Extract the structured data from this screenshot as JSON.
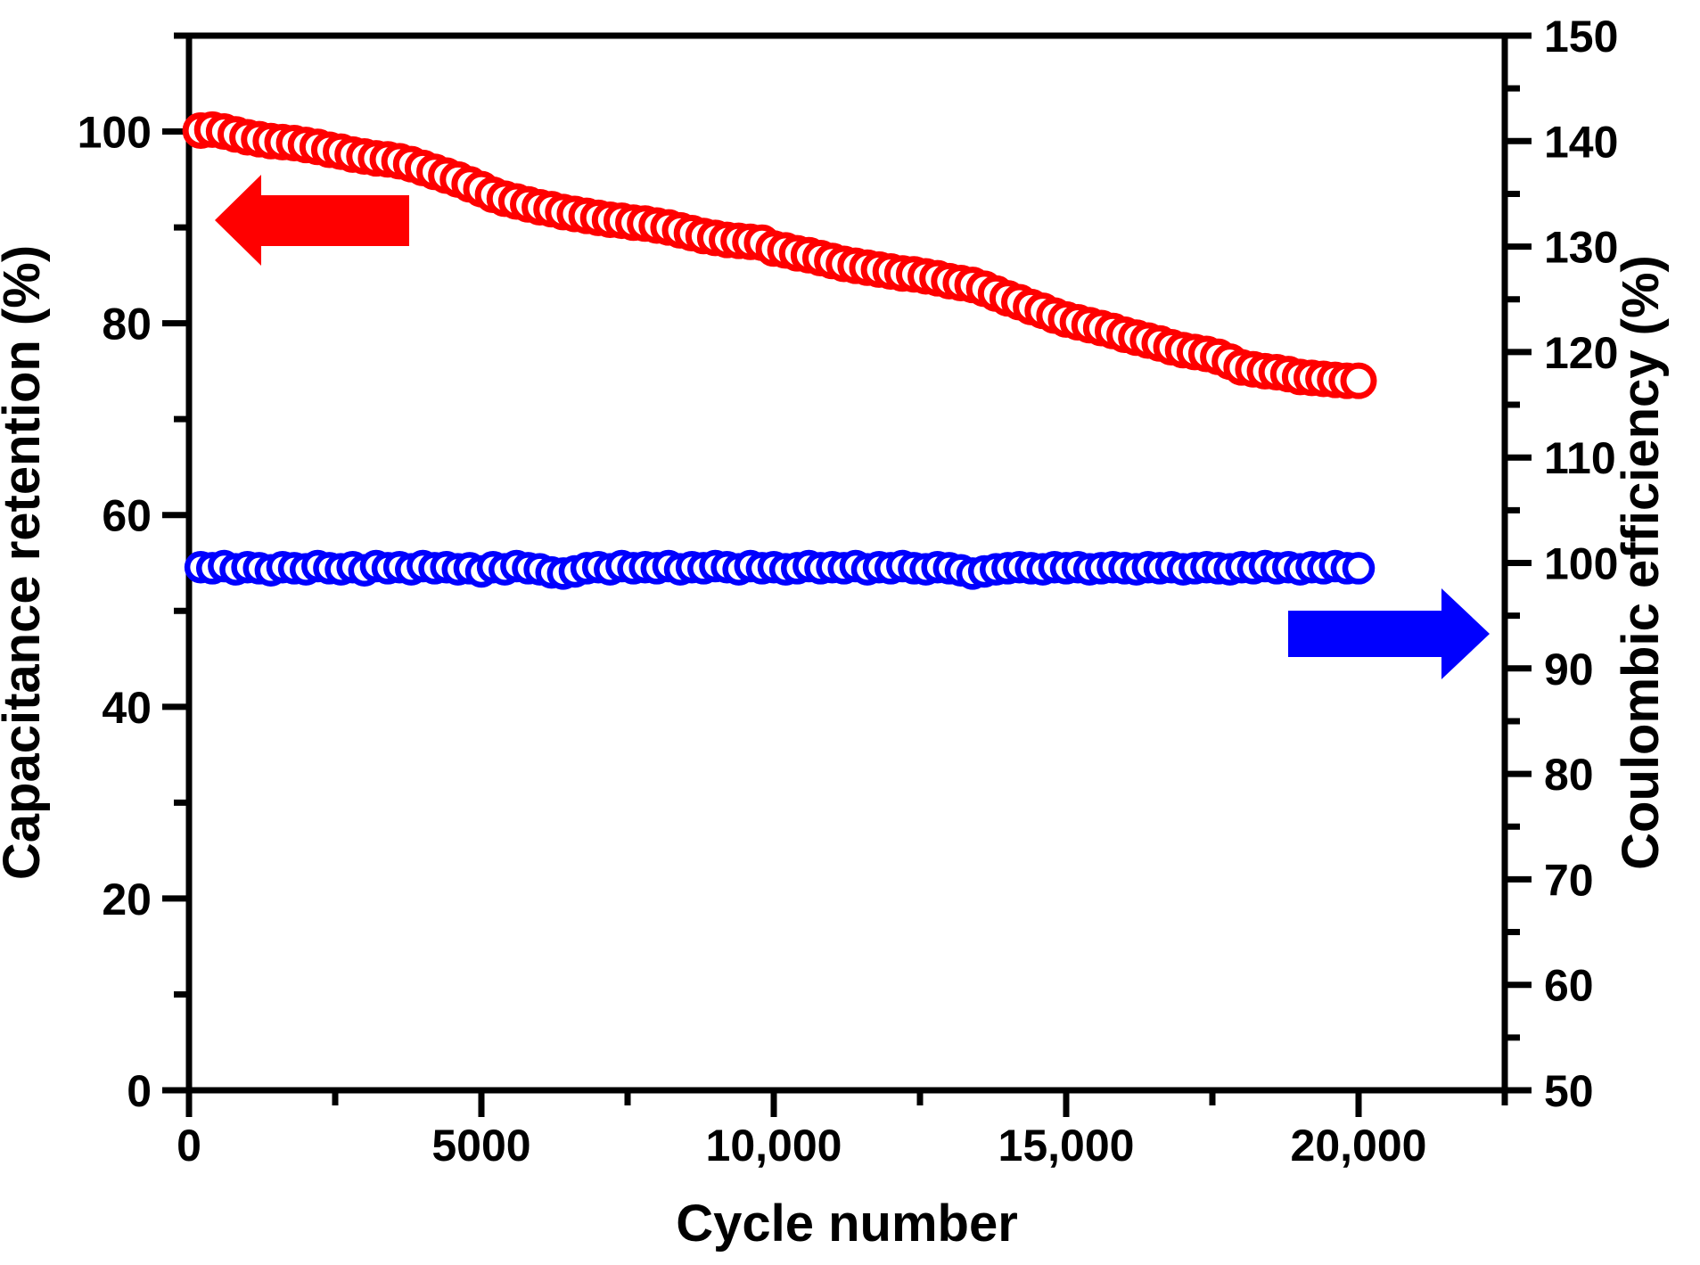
{
  "chart_data": {
    "type": "scatter",
    "title": "",
    "xlabel": "Cycle number",
    "ylabel_left": "Capacitance retention (%)",
    "ylabel_right": "Coulombic efficiency (%)",
    "colors": {
      "retention": "#ff0000",
      "efficiency": "#0000ff",
      "axis": "#000000",
      "background": "#ffffff"
    },
    "axes": {
      "x": {
        "range": [
          0,
          22500
        ],
        "major_ticks": [
          0,
          5000,
          10000,
          15000,
          20000
        ],
        "major_tick_labels": [
          "0",
          "5000",
          "10,000",
          "15,000",
          "20,000"
        ],
        "minor_ticks": [
          2500,
          7500,
          12500,
          17500,
          22500
        ]
      },
      "y_left": {
        "range": [
          0,
          110
        ],
        "major_ticks": [
          0,
          20,
          40,
          60,
          80,
          100
        ],
        "major_tick_labels": [
          "0",
          "20",
          "40",
          "60",
          "80",
          "100"
        ],
        "minor_ticks": [
          10,
          30,
          50,
          70,
          90,
          110
        ]
      },
      "y_right": {
        "range": [
          50,
          150
        ],
        "major_ticks": [
          50,
          60,
          70,
          80,
          90,
          100,
          110,
          120,
          130,
          140,
          150
        ],
        "major_tick_labels": [
          "50",
          "60",
          "70",
          "80",
          "90",
          "100",
          "110",
          "120",
          "130",
          "140",
          "150"
        ],
        "minor_ticks": [
          55,
          65,
          75,
          85,
          95,
          105,
          115,
          125,
          135,
          145
        ]
      }
    },
    "x": [
      200,
      400,
      600,
      800,
      1000,
      1200,
      1400,
      1600,
      1800,
      2000,
      2200,
      2400,
      2600,
      2800,
      3000,
      3200,
      3400,
      3600,
      3800,
      4000,
      4200,
      4400,
      4600,
      4800,
      5000,
      5200,
      5400,
      5600,
      5800,
      6000,
      6200,
      6400,
      6600,
      6800,
      7000,
      7200,
      7400,
      7600,
      7800,
      8000,
      8200,
      8400,
      8600,
      8800,
      9000,
      9200,
      9400,
      9600,
      9800,
      10000,
      10200,
      10400,
      10600,
      10800,
      11000,
      11200,
      11400,
      11600,
      11800,
      12000,
      12200,
      12400,
      12600,
      12800,
      13000,
      13200,
      13400,
      13600,
      13800,
      14000,
      14200,
      14400,
      14600,
      14800,
      15000,
      15200,
      15400,
      15600,
      15800,
      16000,
      16200,
      16400,
      16600,
      16800,
      17000,
      17200,
      17400,
      17600,
      17800,
      18000,
      18200,
      18400,
      18600,
      18800,
      19000,
      19200,
      19400,
      19600,
      19800,
      20000
    ],
    "series": [
      {
        "name": "Capacitance retention",
        "axis": "left",
        "marker": "open-circle",
        "color": "#ff0000",
        "values": [
          100.1,
          100.2,
          100.0,
          99.7,
          99.4,
          99.2,
          99.0,
          98.9,
          98.8,
          98.6,
          98.4,
          98.1,
          97.9,
          97.6,
          97.4,
          97.2,
          97.1,
          96.9,
          96.6,
          96.2,
          95.8,
          95.4,
          95.0,
          94.5,
          94.0,
          93.4,
          93.0,
          92.7,
          92.4,
          92.1,
          91.9,
          91.6,
          91.4,
          91.2,
          91.0,
          90.8,
          90.7,
          90.5,
          90.4,
          90.2,
          90.0,
          89.7,
          89.4,
          89.1,
          88.9,
          88.7,
          88.6,
          88.5,
          88.4,
          87.8,
          87.6,
          87.3,
          87.1,
          86.8,
          86.5,
          86.2,
          86.0,
          85.8,
          85.6,
          85.4,
          85.2,
          85.1,
          84.9,
          84.7,
          84.4,
          84.2,
          84.0,
          83.6,
          83.1,
          82.6,
          82.2,
          81.7,
          81.3,
          80.8,
          80.4,
          80.1,
          79.8,
          79.5,
          79.2,
          78.8,
          78.5,
          78.2,
          77.9,
          77.5,
          77.2,
          77.0,
          76.8,
          76.5,
          76.0,
          75.4,
          75.2,
          75.0,
          74.9,
          74.7,
          74.4,
          74.3,
          74.2,
          74.1,
          74.0,
          74.0
        ]
      },
      {
        "name": "Coulombic efficiency",
        "axis": "right",
        "marker": "open-circle",
        "color": "#0000ff",
        "values": [
          99.6,
          99.5,
          99.7,
          99.4,
          99.6,
          99.5,
          99.3,
          99.6,
          99.5,
          99.4,
          99.7,
          99.5,
          99.4,
          99.6,
          99.3,
          99.7,
          99.5,
          99.6,
          99.4,
          99.7,
          99.5,
          99.6,
          99.4,
          99.5,
          99.2,
          99.6,
          99.4,
          99.7,
          99.5,
          99.4,
          99.1,
          99.0,
          99.2,
          99.5,
          99.6,
          99.4,
          99.7,
          99.5,
          99.6,
          99.5,
          99.7,
          99.4,
          99.6,
          99.5,
          99.7,
          99.6,
          99.4,
          99.7,
          99.5,
          99.6,
          99.4,
          99.5,
          99.7,
          99.5,
          99.6,
          99.5,
          99.7,
          99.4,
          99.6,
          99.5,
          99.7,
          99.5,
          99.4,
          99.6,
          99.5,
          99.3,
          99.0,
          99.2,
          99.4,
          99.5,
          99.6,
          99.5,
          99.4,
          99.6,
          99.5,
          99.6,
          99.4,
          99.5,
          99.6,
          99.5,
          99.4,
          99.6,
          99.5,
          99.6,
          99.4,
          99.5,
          99.6,
          99.5,
          99.4,
          99.6,
          99.5,
          99.7,
          99.5,
          99.6,
          99.4,
          99.6,
          99.5,
          99.7,
          99.5,
          99.5
        ]
      }
    ],
    "annotations": [
      {
        "name": "left-arrow",
        "color": "#ff0000",
        "direction": "left",
        "meaning": "red series read on left axis"
      },
      {
        "name": "right-arrow",
        "color": "#0000ff",
        "direction": "right",
        "meaning": "blue series read on right axis"
      }
    ]
  }
}
